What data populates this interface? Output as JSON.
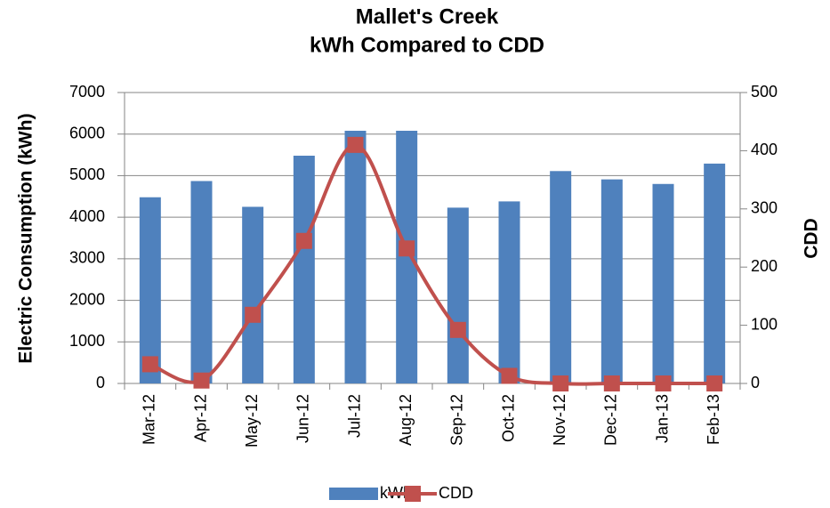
{
  "chart_data": {
    "type": "bar_line",
    "title": "Mallet's Creek",
    "subtitle": "kWh Compared to CDD",
    "y_label": "Electric Consumption (kWh)",
    "y2_label": "CDD",
    "categories": [
      "Mar-12",
      "Apr-12",
      "May-12",
      "Jun-12",
      "Jul-12",
      "Aug-12",
      "Sep-12",
      "Oct-12",
      "Nov-12",
      "Dec-12",
      "Jan-13",
      "Feb-13"
    ],
    "series": [
      {
        "name": "kWh",
        "type": "bar",
        "color": "#4f81bd",
        "values": [
          4480,
          4870,
          4250,
          5480,
          6080,
          6080,
          4230,
          4380,
          5110,
          4910,
          4800,
          5290
        ]
      },
      {
        "name": "CDD",
        "type": "line",
        "axis": "y2",
        "color": "#c0504d",
        "values": [
          33,
          5,
          118,
          245,
          410,
          232,
          92,
          13,
          0,
          0,
          0,
          0
        ]
      }
    ],
    "ylim": [
      0,
      7000
    ],
    "yticks": [
      0,
      1000,
      2000,
      3000,
      4000,
      5000,
      6000,
      7000
    ],
    "y2lim": [
      0,
      500
    ],
    "y2ticks": [
      0,
      100,
      200,
      300,
      400,
      500
    ],
    "grid": true,
    "legend": "bottom"
  }
}
